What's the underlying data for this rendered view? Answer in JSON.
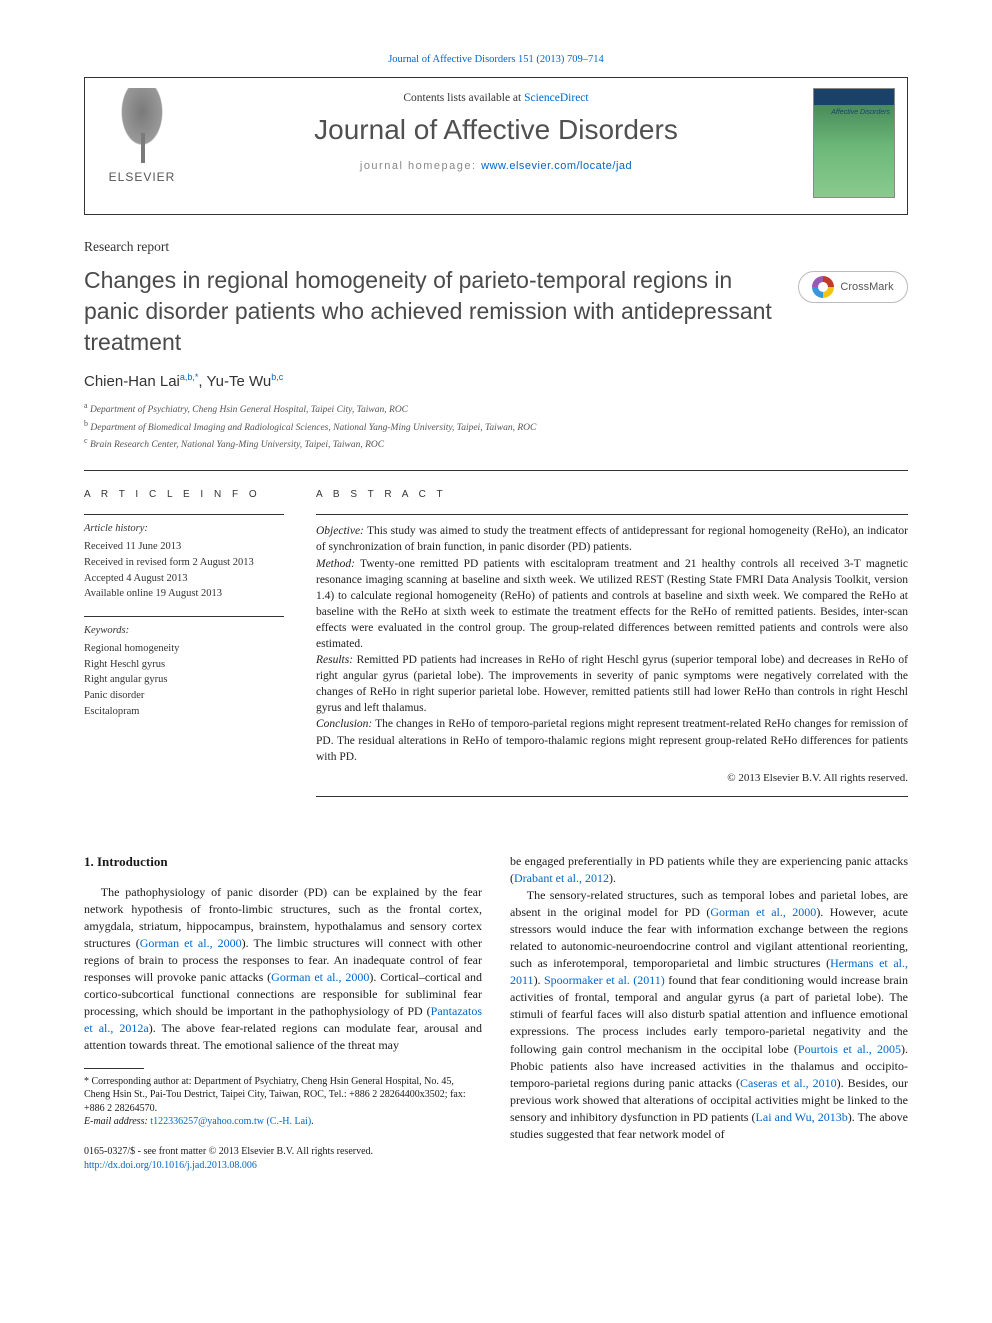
{
  "top_link": {
    "prefix": "",
    "text": "Journal of Affective Disorders 151 (2013) 709–714"
  },
  "header": {
    "contents_prefix": "Contents lists available at ",
    "contents_link": "ScienceDirect",
    "journal_name": "Journal of Affective Disorders",
    "homepage_prefix": "journal homepage: ",
    "homepage_link": "www.elsevier.com/locate/jad",
    "publisher": "ELSEVIER"
  },
  "article": {
    "report_type": "Research report",
    "title": "Changes in regional homogeneity of parieto-temporal regions in panic disorder patients who achieved remission with antidepressant treatment",
    "crossmark": "CrossMark"
  },
  "authors": {
    "a1_name": "Chien-Han Lai",
    "a1_aff": "a,b,",
    "a1_corr": "*",
    "sep": ", ",
    "a2_name": "Yu-Te Wu",
    "a2_aff": "b,c"
  },
  "affiliations": {
    "a": "Department of Psychiatry, Cheng Hsin General Hospital, Taipei City, Taiwan, ROC",
    "b": "Department of Biomedical Imaging and Radiological Sciences, National Yang-Ming University, Taipei, Taiwan, ROC",
    "c": "Brain Research Center, National Yang-Ming University, Taipei, Taiwan, ROC"
  },
  "meta": {
    "info_head": "A R T I C L E  I N F O",
    "abstract_head": "A B S T R A C T",
    "history_label": "Article history:",
    "received": "Received 11 June 2013",
    "revised": "Received in revised form 2 August 2013",
    "accepted": "Accepted 4 August 2013",
    "online": "Available online 19 August 2013",
    "keywords_label": "Keywords:",
    "kw1": "Regional homogeneity",
    "kw2": "Right Heschl gyrus",
    "kw3": "Right angular gyrus",
    "kw4": "Panic disorder",
    "kw5": "Escitalopram"
  },
  "abstract": {
    "obj_label": "Objective:",
    "obj": " This study was aimed to study the treatment effects of antidepressant for regional homogeneity (ReHo), an indicator of synchronization of brain function, in panic disorder (PD) patients.",
    "meth_label": "Method:",
    "meth": " Twenty-one remitted PD patients with escitalopram treatment and 21 healthy controls all received 3-T magnetic resonance imaging scanning at baseline and sixth week. We utilized REST (Resting State FMRI Data Analysis Toolkit, version 1.4) to calculate regional homogeneity (ReHo) of patients and controls at baseline and sixth week. We compared the ReHo at baseline with the ReHo at sixth week to estimate the treatment effects for the ReHo of remitted patients. Besides, inter-scan effects were evaluated in the control group. The group-related differences between remitted patients and controls were also estimated.",
    "res_label": "Results:",
    "res": " Remitted PD patients had increases in ReHo of right Heschl gyrus (superior temporal lobe) and decreases in ReHo of right angular gyrus (parietal lobe). The improvements in severity of panic symptoms were negatively correlated with the changes of ReHo in right superior parietal lobe. However, remitted patients still had lower ReHo than controls in right Heschl gyrus and left thalamus.",
    "conc_label": "Conclusion:",
    "conc": " The changes in ReHo of temporo-parietal regions might represent treatment-related ReHo changes for remission of PD. The residual alterations in ReHo of temporo-thalamic regions might represent group-related ReHo differences for patients with PD.",
    "copyright": "© 2013 Elsevier B.V. All rights reserved."
  },
  "body": {
    "h_intro": "1.  Introduction",
    "p1a": "The pathophysiology of panic disorder (PD) can be explained by the fear network hypothesis of fronto-limbic structures, such as the frontal cortex, amygdala, striatum, hippocampus, brainstem, hypothalamus and sensory cortex structures (",
    "p1_ref1": "Gorman et al., 2000",
    "p1b": "). The limbic structures will connect with other regions of brain to process the responses to fear. An inadequate control of fear responses will provoke panic attacks (",
    "p1_ref2": "Gorman et al., 2000",
    "p1c": "). Cortical–cortical and cortico-subcortical functional connections are responsible for subliminal fear processing, which should be important in the pathophysiology of PD (",
    "p1_ref3": "Pantazatos et al., 2012a",
    "p1d": "). The above fear-related regions can modulate fear, arousal and attention towards threat. The emotional salience of the threat may",
    "p1e": "be engaged preferentially in PD patients while they are experiencing panic attacks (",
    "p1_ref4": "Drabant et al., 2012",
    "p1f": ").",
    "p2a": "The sensory-related structures, such as temporal lobes and parietal lobes, are absent in the original model for PD (",
    "p2_ref1": "Gorman et al., 2000",
    "p2b": "). However, acute stressors would induce the fear with information exchange between the regions related to autonomic-neuroendocrine control and vigilant attentional reorienting, such as inferotemporal, temporoparietal and limbic structures (",
    "p2_ref2": "Hermans et al., 2011",
    "p2c": "). ",
    "p2_ref3": "Spoormaker et al. (2011)",
    "p2d": " found that fear conditioning would increase brain activities of frontal, temporal and angular gyrus (a part of parietal lobe). The stimuli of fearful faces will also disturb spatial attention and influence emotional expressions. The process includes early temporo-parietal negativity and the following gain control mechanism in the occipital lobe (",
    "p2_ref4": "Pourtois et al., 2005",
    "p2e": "). Phobic patients also have increased activities in the thalamus and occipito-temporo-parietal regions during panic attacks (",
    "p2_ref5": "Caseras et al., 2010",
    "p2f": "). Besides, our previous work showed that alterations of occipital activities might be linked to the sensory and inhibitory dysfunction in PD patients (",
    "p2_ref6": "Lai and Wu, 2013b",
    "p2g": "). The above studies suggested that fear network model of"
  },
  "footnote": {
    "corr_label": "* Corresponding author at: ",
    "corr_text": "Department of Psychiatry, Cheng Hsin General Hospital, No. 45, Cheng Hsin St., Pai-Tou Destrict, Taipei City, Taiwan, ROC, Tel.: +886 2 28264400x3502; fax: +886 2 28264570.",
    "email_label": "E-mail address: ",
    "email": "t122336257@yahoo.com.tw (C.-H. Lai)",
    "email_suffix": "."
  },
  "doi": {
    "issn": "0165-0327/$ - see front matter © 2013 Elsevier B.V. All rights reserved.",
    "doi_link": "http://dx.doi.org/10.1016/j.jad.2013.08.006"
  }
}
